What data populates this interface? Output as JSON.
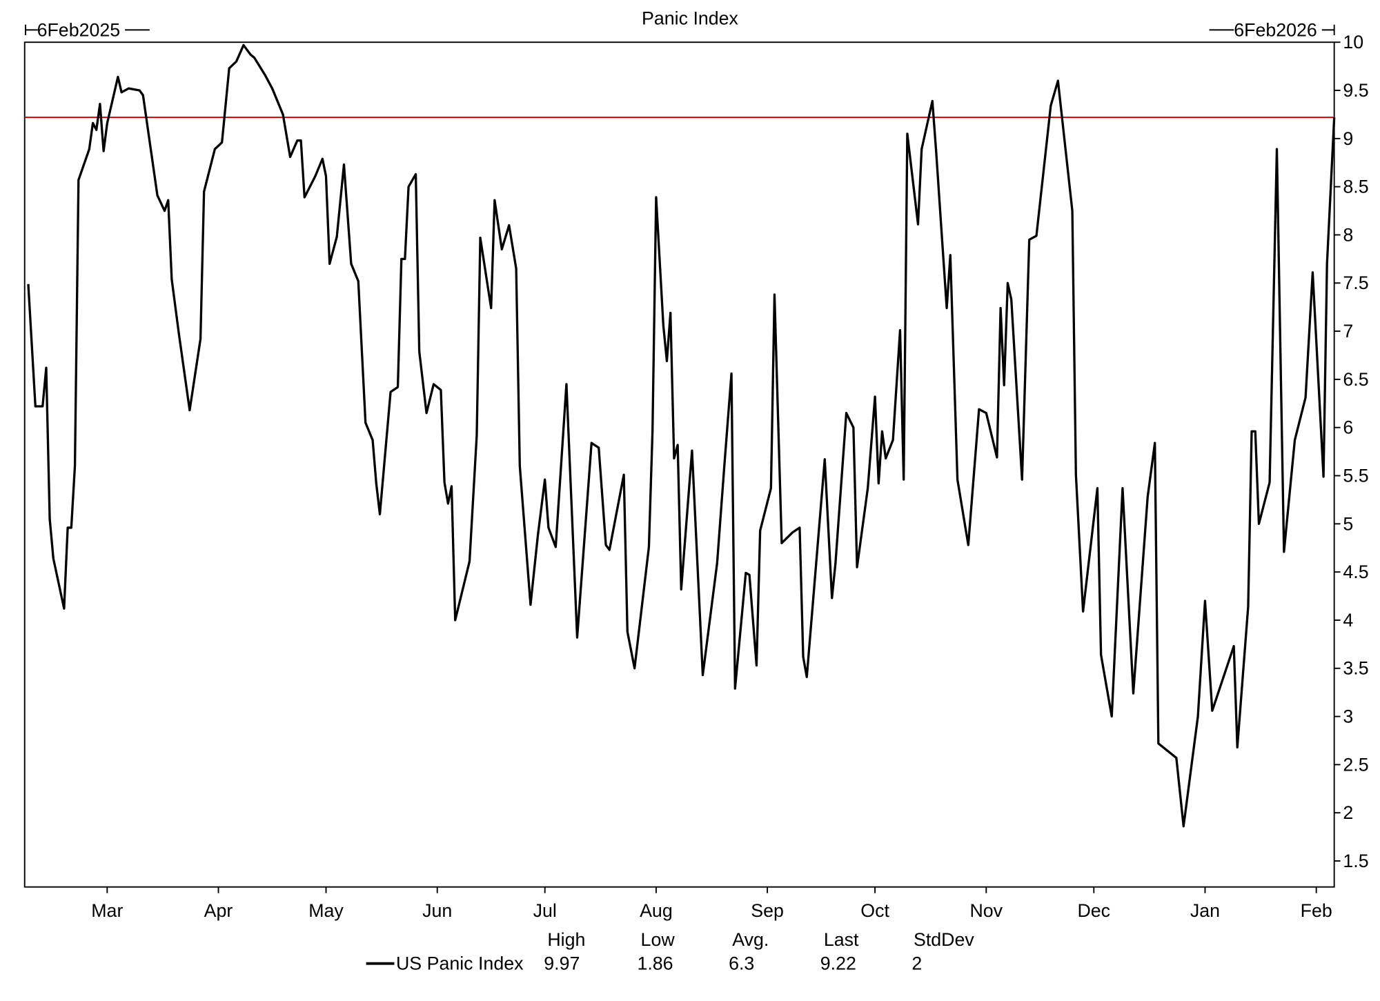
{
  "chart_data": {
    "type": "line",
    "title": "Panic Index",
    "start_label": "6Feb2025",
    "end_label": "6Feb2026",
    "xlim": [
      "2025-02-06",
      "2026-02-06"
    ],
    "ylim": [
      1.23,
      10
    ],
    "y_ticks": [
      1.5,
      2,
      2.5,
      3,
      3.5,
      4,
      4.5,
      5,
      5.5,
      6,
      6.5,
      7,
      7.5,
      8,
      8.5,
      9,
      9.5,
      10
    ],
    "x_ticks": [
      {
        "date": "2025-03-01",
        "label": "Mar"
      },
      {
        "date": "2025-04-01",
        "label": "Apr"
      },
      {
        "date": "2025-05-01",
        "label": "May"
      },
      {
        "date": "2025-06-01",
        "label": "Jun"
      },
      {
        "date": "2025-07-01",
        "label": "Jul"
      },
      {
        "date": "2025-08-01",
        "label": "Aug"
      },
      {
        "date": "2025-09-01",
        "label": "Sep"
      },
      {
        "date": "2025-10-01",
        "label": "Oct"
      },
      {
        "date": "2025-11-01",
        "label": "Nov"
      },
      {
        "date": "2025-12-01",
        "label": "Dec"
      },
      {
        "date": "2026-01-01",
        "label": "Jan"
      },
      {
        "date": "2026-02-01",
        "label": "Feb"
      }
    ],
    "grid": false,
    "reference_line": {
      "value": 9.22,
      "color": "#cc0000"
    },
    "series": [
      {
        "name": "US Panic Index",
        "color": "#000000",
        "points": [
          [
            "2025-02-07",
            7.49
          ],
          [
            "2025-02-09",
            6.22
          ],
          [
            "2025-02-11",
            6.22
          ],
          [
            "2025-02-12",
            6.62
          ],
          [
            "2025-02-13",
            5.05
          ],
          [
            "2025-02-14",
            4.64
          ],
          [
            "2025-02-17",
            4.12
          ],
          [
            "2025-02-18",
            4.96
          ],
          [
            "2025-02-19",
            4.96
          ],
          [
            "2025-02-20",
            5.6
          ],
          [
            "2025-02-21",
            8.57
          ],
          [
            "2025-02-24",
            8.89
          ],
          [
            "2025-02-25",
            9.16
          ],
          [
            "2025-02-26",
            9.09
          ],
          [
            "2025-02-27",
            9.36
          ],
          [
            "2025-02-28",
            8.87
          ],
          [
            "2025-03-01",
            9.16
          ],
          [
            "2025-03-04",
            9.64
          ],
          [
            "2025-03-05",
            9.48
          ],
          [
            "2025-03-07",
            9.52
          ],
          [
            "2025-03-10",
            9.5
          ],
          [
            "2025-03-11",
            9.45
          ],
          [
            "2025-03-15",
            8.41
          ],
          [
            "2025-03-17",
            8.25
          ],
          [
            "2025-03-18",
            8.36
          ],
          [
            "2025-03-19",
            7.54
          ],
          [
            "2025-03-21",
            6.97
          ],
          [
            "2025-03-24",
            6.18
          ],
          [
            "2025-03-27",
            6.92
          ],
          [
            "2025-03-28",
            8.45
          ],
          [
            "2025-03-31",
            8.89
          ],
          [
            "2025-04-02",
            8.96
          ],
          [
            "2025-04-04",
            9.73
          ],
          [
            "2025-04-06",
            9.8
          ],
          [
            "2025-04-08",
            9.97
          ],
          [
            "2025-04-10",
            9.87
          ],
          [
            "2025-04-11",
            9.84
          ],
          [
            "2025-04-14",
            9.66
          ],
          [
            "2025-04-16",
            9.52
          ],
          [
            "2025-04-19",
            9.25
          ],
          [
            "2025-04-21",
            8.81
          ],
          [
            "2025-04-23",
            8.98
          ],
          [
            "2025-04-24",
            8.98
          ],
          [
            "2025-04-25",
            8.39
          ],
          [
            "2025-04-28",
            8.61
          ],
          [
            "2025-04-29",
            8.7
          ],
          [
            "2025-04-30",
            8.79
          ],
          [
            "2025-05-01",
            8.61
          ],
          [
            "2025-05-02",
            7.7
          ],
          [
            "2025-05-04",
            7.98
          ],
          [
            "2025-05-06",
            8.73
          ],
          [
            "2025-05-08",
            7.7
          ],
          [
            "2025-05-10",
            7.52
          ],
          [
            "2025-05-12",
            6.05
          ],
          [
            "2025-05-14",
            5.87
          ],
          [
            "2025-05-15",
            5.42
          ],
          [
            "2025-05-16",
            5.1
          ],
          [
            "2025-05-19",
            6.37
          ],
          [
            "2025-05-21",
            6.42
          ],
          [
            "2025-05-22",
            7.75
          ],
          [
            "2025-05-23",
            7.75
          ],
          [
            "2025-05-24",
            8.5
          ],
          [
            "2025-05-26",
            8.63
          ],
          [
            "2025-05-27",
            6.79
          ],
          [
            "2025-05-29",
            6.15
          ],
          [
            "2025-05-31",
            6.45
          ],
          [
            "2025-06-02",
            6.39
          ],
          [
            "2025-06-03",
            5.43
          ],
          [
            "2025-06-04",
            5.21
          ],
          [
            "2025-06-05",
            5.39
          ],
          [
            "2025-06-06",
            4.0
          ],
          [
            "2025-06-10",
            4.61
          ],
          [
            "2025-06-12",
            5.92
          ],
          [
            "2025-06-13",
            7.97
          ],
          [
            "2025-06-16",
            7.24
          ],
          [
            "2025-06-17",
            8.36
          ],
          [
            "2025-06-19",
            7.85
          ],
          [
            "2025-06-21",
            8.1
          ],
          [
            "2025-06-23",
            7.65
          ],
          [
            "2025-06-24",
            5.6
          ],
          [
            "2025-06-27",
            4.16
          ],
          [
            "2025-06-29",
            4.87
          ],
          [
            "2025-07-01",
            5.46
          ],
          [
            "2025-07-02",
            4.96
          ],
          [
            "2025-07-04",
            4.76
          ],
          [
            "2025-07-07",
            6.45
          ],
          [
            "2025-07-10",
            3.82
          ],
          [
            "2025-07-14",
            5.84
          ],
          [
            "2025-07-16",
            5.79
          ],
          [
            "2025-07-18",
            4.78
          ],
          [
            "2025-07-19",
            4.73
          ],
          [
            "2025-07-23",
            5.51
          ],
          [
            "2025-07-24",
            3.88
          ],
          [
            "2025-07-26",
            3.5
          ],
          [
            "2025-07-30",
            4.76
          ],
          [
            "2025-07-31",
            5.96
          ],
          [
            "2025-08-01",
            8.39
          ],
          [
            "2025-08-03",
            7.06
          ],
          [
            "2025-08-04",
            6.69
          ],
          [
            "2025-08-05",
            7.19
          ],
          [
            "2025-08-06",
            5.68
          ],
          [
            "2025-08-07",
            5.82
          ],
          [
            "2025-08-08",
            4.32
          ],
          [
            "2025-08-11",
            5.76
          ],
          [
            "2025-08-14",
            3.43
          ],
          [
            "2025-08-18",
            4.59
          ],
          [
            "2025-08-20",
            5.6
          ],
          [
            "2025-08-22",
            6.56
          ],
          [
            "2025-08-23",
            3.29
          ],
          [
            "2025-08-26",
            4.49
          ],
          [
            "2025-08-27",
            4.47
          ],
          [
            "2025-08-29",
            3.53
          ],
          [
            "2025-08-30",
            4.93
          ],
          [
            "2025-09-02",
            5.37
          ],
          [
            "2025-09-03",
            7.38
          ],
          [
            "2025-09-05",
            4.8
          ],
          [
            "2025-09-08",
            4.91
          ],
          [
            "2025-09-10",
            4.96
          ],
          [
            "2025-09-11",
            3.62
          ],
          [
            "2025-09-12",
            3.41
          ],
          [
            "2025-09-17",
            5.67
          ],
          [
            "2025-09-19",
            4.23
          ],
          [
            "2025-09-20",
            4.59
          ],
          [
            "2025-09-23",
            6.15
          ],
          [
            "2025-09-25",
            6.0
          ],
          [
            "2025-09-26",
            4.55
          ],
          [
            "2025-09-29",
            5.37
          ],
          [
            "2025-10-01",
            6.32
          ],
          [
            "2025-10-02",
            5.42
          ],
          [
            "2025-10-03",
            5.96
          ],
          [
            "2025-10-04",
            5.68
          ],
          [
            "2025-10-06",
            5.87
          ],
          [
            "2025-10-08",
            7.01
          ],
          [
            "2025-10-09",
            5.46
          ],
          [
            "2025-10-10",
            9.05
          ],
          [
            "2025-10-13",
            8.11
          ],
          [
            "2025-10-14",
            8.89
          ],
          [
            "2025-10-17",
            9.39
          ],
          [
            "2025-10-18",
            8.89
          ],
          [
            "2025-10-21",
            7.24
          ],
          [
            "2025-10-22",
            7.79
          ],
          [
            "2025-10-24",
            5.46
          ],
          [
            "2025-10-27",
            4.78
          ],
          [
            "2025-10-30",
            6.19
          ],
          [
            "2025-11-01",
            6.15
          ],
          [
            "2025-11-04",
            5.69
          ],
          [
            "2025-11-05",
            7.24
          ],
          [
            "2025-11-06",
            6.44
          ],
          [
            "2025-11-07",
            7.5
          ],
          [
            "2025-11-08",
            7.33
          ],
          [
            "2025-11-11",
            5.46
          ],
          [
            "2025-11-13",
            7.95
          ],
          [
            "2025-11-15",
            7.99
          ],
          [
            "2025-11-19",
            9.34
          ],
          [
            "2025-11-21",
            9.6
          ],
          [
            "2025-11-25",
            8.25
          ],
          [
            "2025-11-26",
            5.51
          ],
          [
            "2025-11-28",
            4.09
          ],
          [
            "2025-12-02",
            5.37
          ],
          [
            "2025-12-03",
            3.64
          ],
          [
            "2025-12-06",
            3.0
          ],
          [
            "2025-12-09",
            5.37
          ],
          [
            "2025-12-12",
            3.24
          ],
          [
            "2025-12-16",
            5.28
          ],
          [
            "2025-12-18",
            5.84
          ],
          [
            "2025-12-19",
            2.72
          ],
          [
            "2025-12-24",
            2.57
          ],
          [
            "2025-12-26",
            1.86
          ],
          [
            "2025-12-30",
            3.0
          ],
          [
            "2026-01-01",
            4.2
          ],
          [
            "2026-01-03",
            3.06
          ],
          [
            "2026-01-09",
            3.73
          ],
          [
            "2026-01-10",
            2.68
          ],
          [
            "2026-01-13",
            4.14
          ],
          [
            "2026-01-14",
            5.96
          ],
          [
            "2026-01-15",
            5.96
          ],
          [
            "2026-01-16",
            5.0
          ],
          [
            "2026-01-19",
            5.43
          ],
          [
            "2026-01-21",
            8.89
          ],
          [
            "2026-01-23",
            4.71
          ],
          [
            "2026-01-26",
            5.87
          ],
          [
            "2026-01-29",
            6.31
          ],
          [
            "2026-01-31",
            7.61
          ],
          [
            "2026-02-03",
            5.49
          ],
          [
            "2026-02-04",
            7.7
          ],
          [
            "2026-02-06",
            9.22
          ]
        ]
      }
    ],
    "legend": {
      "placement": "bottom",
      "headers": [
        "High",
        "Low",
        "Avg.",
        "Last",
        "StdDev"
      ],
      "rows": [
        {
          "name": "US Panic Index",
          "values": [
            "9.97",
            "1.86",
            "6.3",
            "9.22",
            "2"
          ]
        }
      ]
    }
  }
}
